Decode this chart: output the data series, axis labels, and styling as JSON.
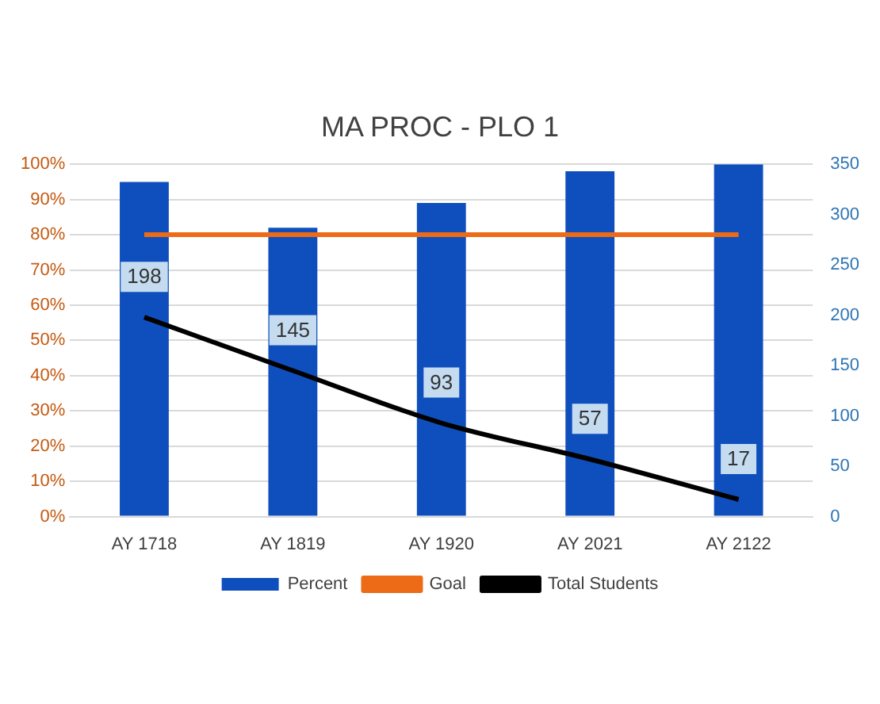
{
  "chart_data": {
    "type": "bar",
    "title": "MA PROC - PLO 1",
    "categories": [
      "AY 1718",
      "AY 1819",
      "AY 1920",
      "AY 2021",
      "AY 2122"
    ],
    "series": [
      {
        "name": "Percent",
        "color": "#0f4fbd",
        "values": [
          95,
          82,
          89,
          98,
          100
        ]
      },
      {
        "name": "Goal",
        "type": "line",
        "color": "#ed6a17",
        "values": [
          80,
          80,
          80,
          80,
          80
        ]
      },
      {
        "name": "Total Students",
        "type": "line",
        "axis": "y2",
        "color": "#000000",
        "values": [
          198,
          145,
          93,
          57,
          17
        ],
        "value_labels": [
          "198",
          "145",
          "93",
          "57",
          "17"
        ]
      }
    ],
    "ylim": [
      0,
      100
    ],
    "yticks": [
      {
        "value": 0,
        "label": "0%"
      },
      {
        "value": 10,
        "label": "10%"
      },
      {
        "value": 20,
        "label": "20%"
      },
      {
        "value": 30,
        "label": "30%"
      },
      {
        "value": 40,
        "label": "40%"
      },
      {
        "value": 50,
        "label": "50%"
      },
      {
        "value": 60,
        "label": "60%"
      },
      {
        "value": 70,
        "label": "70%"
      },
      {
        "value": 80,
        "label": "80%"
      },
      {
        "value": 90,
        "label": "90%"
      },
      {
        "value": 100,
        "label": "100%"
      }
    ],
    "y2lim": [
      0,
      350
    ],
    "y2ticks": [
      0,
      50,
      100,
      150,
      200,
      250,
      300,
      350
    ],
    "grid": "y",
    "legend": "bottom",
    "marker": "none",
    "line_style": "solid"
  }
}
